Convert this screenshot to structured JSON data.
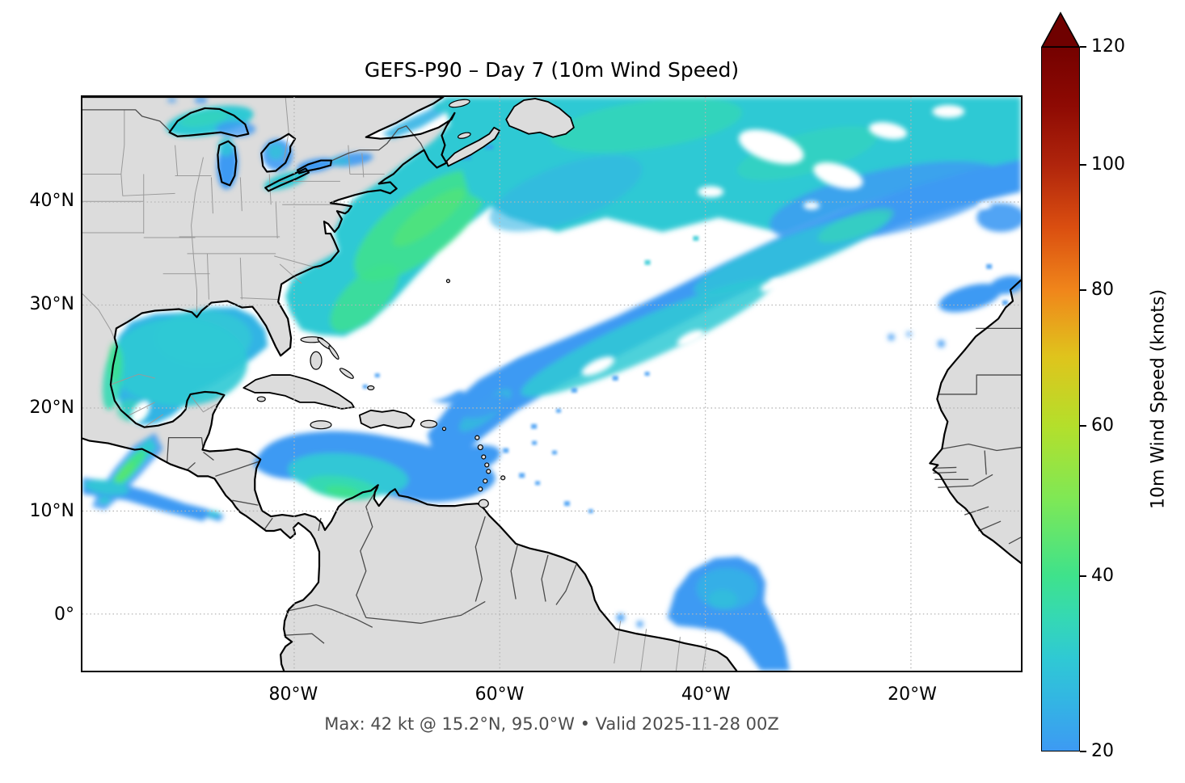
{
  "title": "GEFS-P90 – Day 7 (10m Wind Speed)",
  "subtitle": "Max: 42 kt @ 15.2°N, 95.0°W • Valid 2025-11-28 00Z",
  "colorbar": {
    "label": "10m Wind Speed (knots)",
    "min": 20,
    "max": 120,
    "gamma": 0.7,
    "ticks": [
      20,
      40,
      60,
      80,
      100,
      120
    ],
    "stops": [
      {
        "v": 20,
        "color": "#3d9af3"
      },
      {
        "v": 25,
        "color": "#33b4e4"
      },
      {
        "v": 30,
        "color": "#2fc9d4"
      },
      {
        "v": 35,
        "color": "#35d9b2"
      },
      {
        "v": 40,
        "color": "#3fe28b"
      },
      {
        "v": 50,
        "color": "#7fe855"
      },
      {
        "v": 60,
        "color": "#b4df2b"
      },
      {
        "v": 70,
        "color": "#dfc41c"
      },
      {
        "v": 80,
        "color": "#f0861b"
      },
      {
        "v": 90,
        "color": "#da4e10"
      },
      {
        "v": 100,
        "color": "#b0250c"
      },
      {
        "v": 110,
        "color": "#8e0a03"
      },
      {
        "v": 120,
        "color": "#750100"
      }
    ],
    "extend_max_color": "#6f0100"
  },
  "axes": {
    "x_ticks": [
      {
        "label": "80°W",
        "lon": -80
      },
      {
        "label": "60°W",
        "lon": -60
      },
      {
        "label": "40°W",
        "lon": -40
      },
      {
        "label": "20°W",
        "lon": -20
      }
    ],
    "y_ticks": [
      {
        "label": "40°N",
        "lat": 40
      },
      {
        "label": "30°N",
        "lat": 30
      },
      {
        "label": "20°N",
        "lat": 20
      },
      {
        "label": "10°N",
        "lat": 10
      },
      {
        "label": "0°",
        "lat": 0
      }
    ]
  },
  "map_colors": {
    "land": "#dcdcdc",
    "ocean": "#ffffff",
    "coastline": "#000000",
    "country_border": "#4a4a4a",
    "state_border": "#9a9a9a",
    "gridline": "#b5b5b5"
  },
  "chart_data": {
    "type": "heatmap",
    "title": "GEFS-P90 – Day 7 (10m Wind Speed)",
    "variable": "90th-percentile ensemble 10m wind speed",
    "model": "GEFS",
    "percentile": "P90",
    "forecast_day": 7,
    "valid_time": "2025-11-28 00Z",
    "units": "knots",
    "display_threshold_kt": 20,
    "max": {
      "value_kt": 42,
      "lat_label": "15.2°N",
      "lon_label": "95.0°W"
    },
    "extent": {
      "lon_min": -100.6,
      "lon_max": -9.3,
      "lat_min": -5.5,
      "lat_max": 50.2
    },
    "grid": {
      "lat_lines": [
        0,
        10,
        20,
        30,
        40
      ],
      "lon_lines": [
        -80,
        -60,
        -40,
        -20
      ],
      "style": "dotted"
    },
    "legend_position": "right colorbar, vertical, extend-max arrow",
    "features": [
      {
        "region": "Northwest Atlantic off U.S. East Coast (Gulf Stream)",
        "approx_lat": 38,
        "approx_lon": -66,
        "peak_kt": 38,
        "typical_kt": 32
      },
      {
        "region": "North Atlantic 42–50°N swath to NE corner",
        "approx_lat": 46,
        "approx_lon": -35,
        "peak_kt": 36,
        "typical_kt": 28
      },
      {
        "region": "Central Atlantic SW–NE band (20–35°N, 60–30°W)",
        "approx_lat": 27,
        "approx_lon": -50,
        "peak_kt": 30,
        "typical_kt": 24
      },
      {
        "region": "Gulf of Mexico",
        "approx_lat": 25,
        "approx_lon": -92,
        "peak_kt": 35,
        "typical_kt": 28
      },
      {
        "region": "Gulf of Tehuantepec gap jet (location of maximum)",
        "approx_lat": 15.2,
        "approx_lon": -95.0,
        "peak_kt": 42,
        "typical_kt": 35
      },
      {
        "region": "Caribbean Sea / Colombia low-level jet",
        "approx_lat": 14,
        "approx_lon": -75,
        "peak_kt": 38,
        "typical_kt": 28
      },
      {
        "region": "Great Lakes",
        "approx_lat": 45,
        "approx_lon": -84,
        "peak_kt": 32,
        "typical_kt": 25
      },
      {
        "region": "Canary Islands / Madeira patch",
        "approx_lat": 30,
        "approx_lon": -14,
        "peak_kt": 24,
        "typical_kt": 21
      },
      {
        "region": "Papagayo jet, eastern Pacific",
        "approx_lat": 11,
        "approx_lon": -87,
        "peak_kt": 26,
        "typical_kt": 22
      },
      {
        "region": "Equatorial Atlantic off NE Brazil",
        "approx_lat": 0,
        "approx_lon": -38,
        "peak_kt": 26,
        "typical_kt": 22
      },
      {
        "region": "Unshaded white areas",
        "note": "P90 wind below 20 kt threshold"
      }
    ]
  }
}
